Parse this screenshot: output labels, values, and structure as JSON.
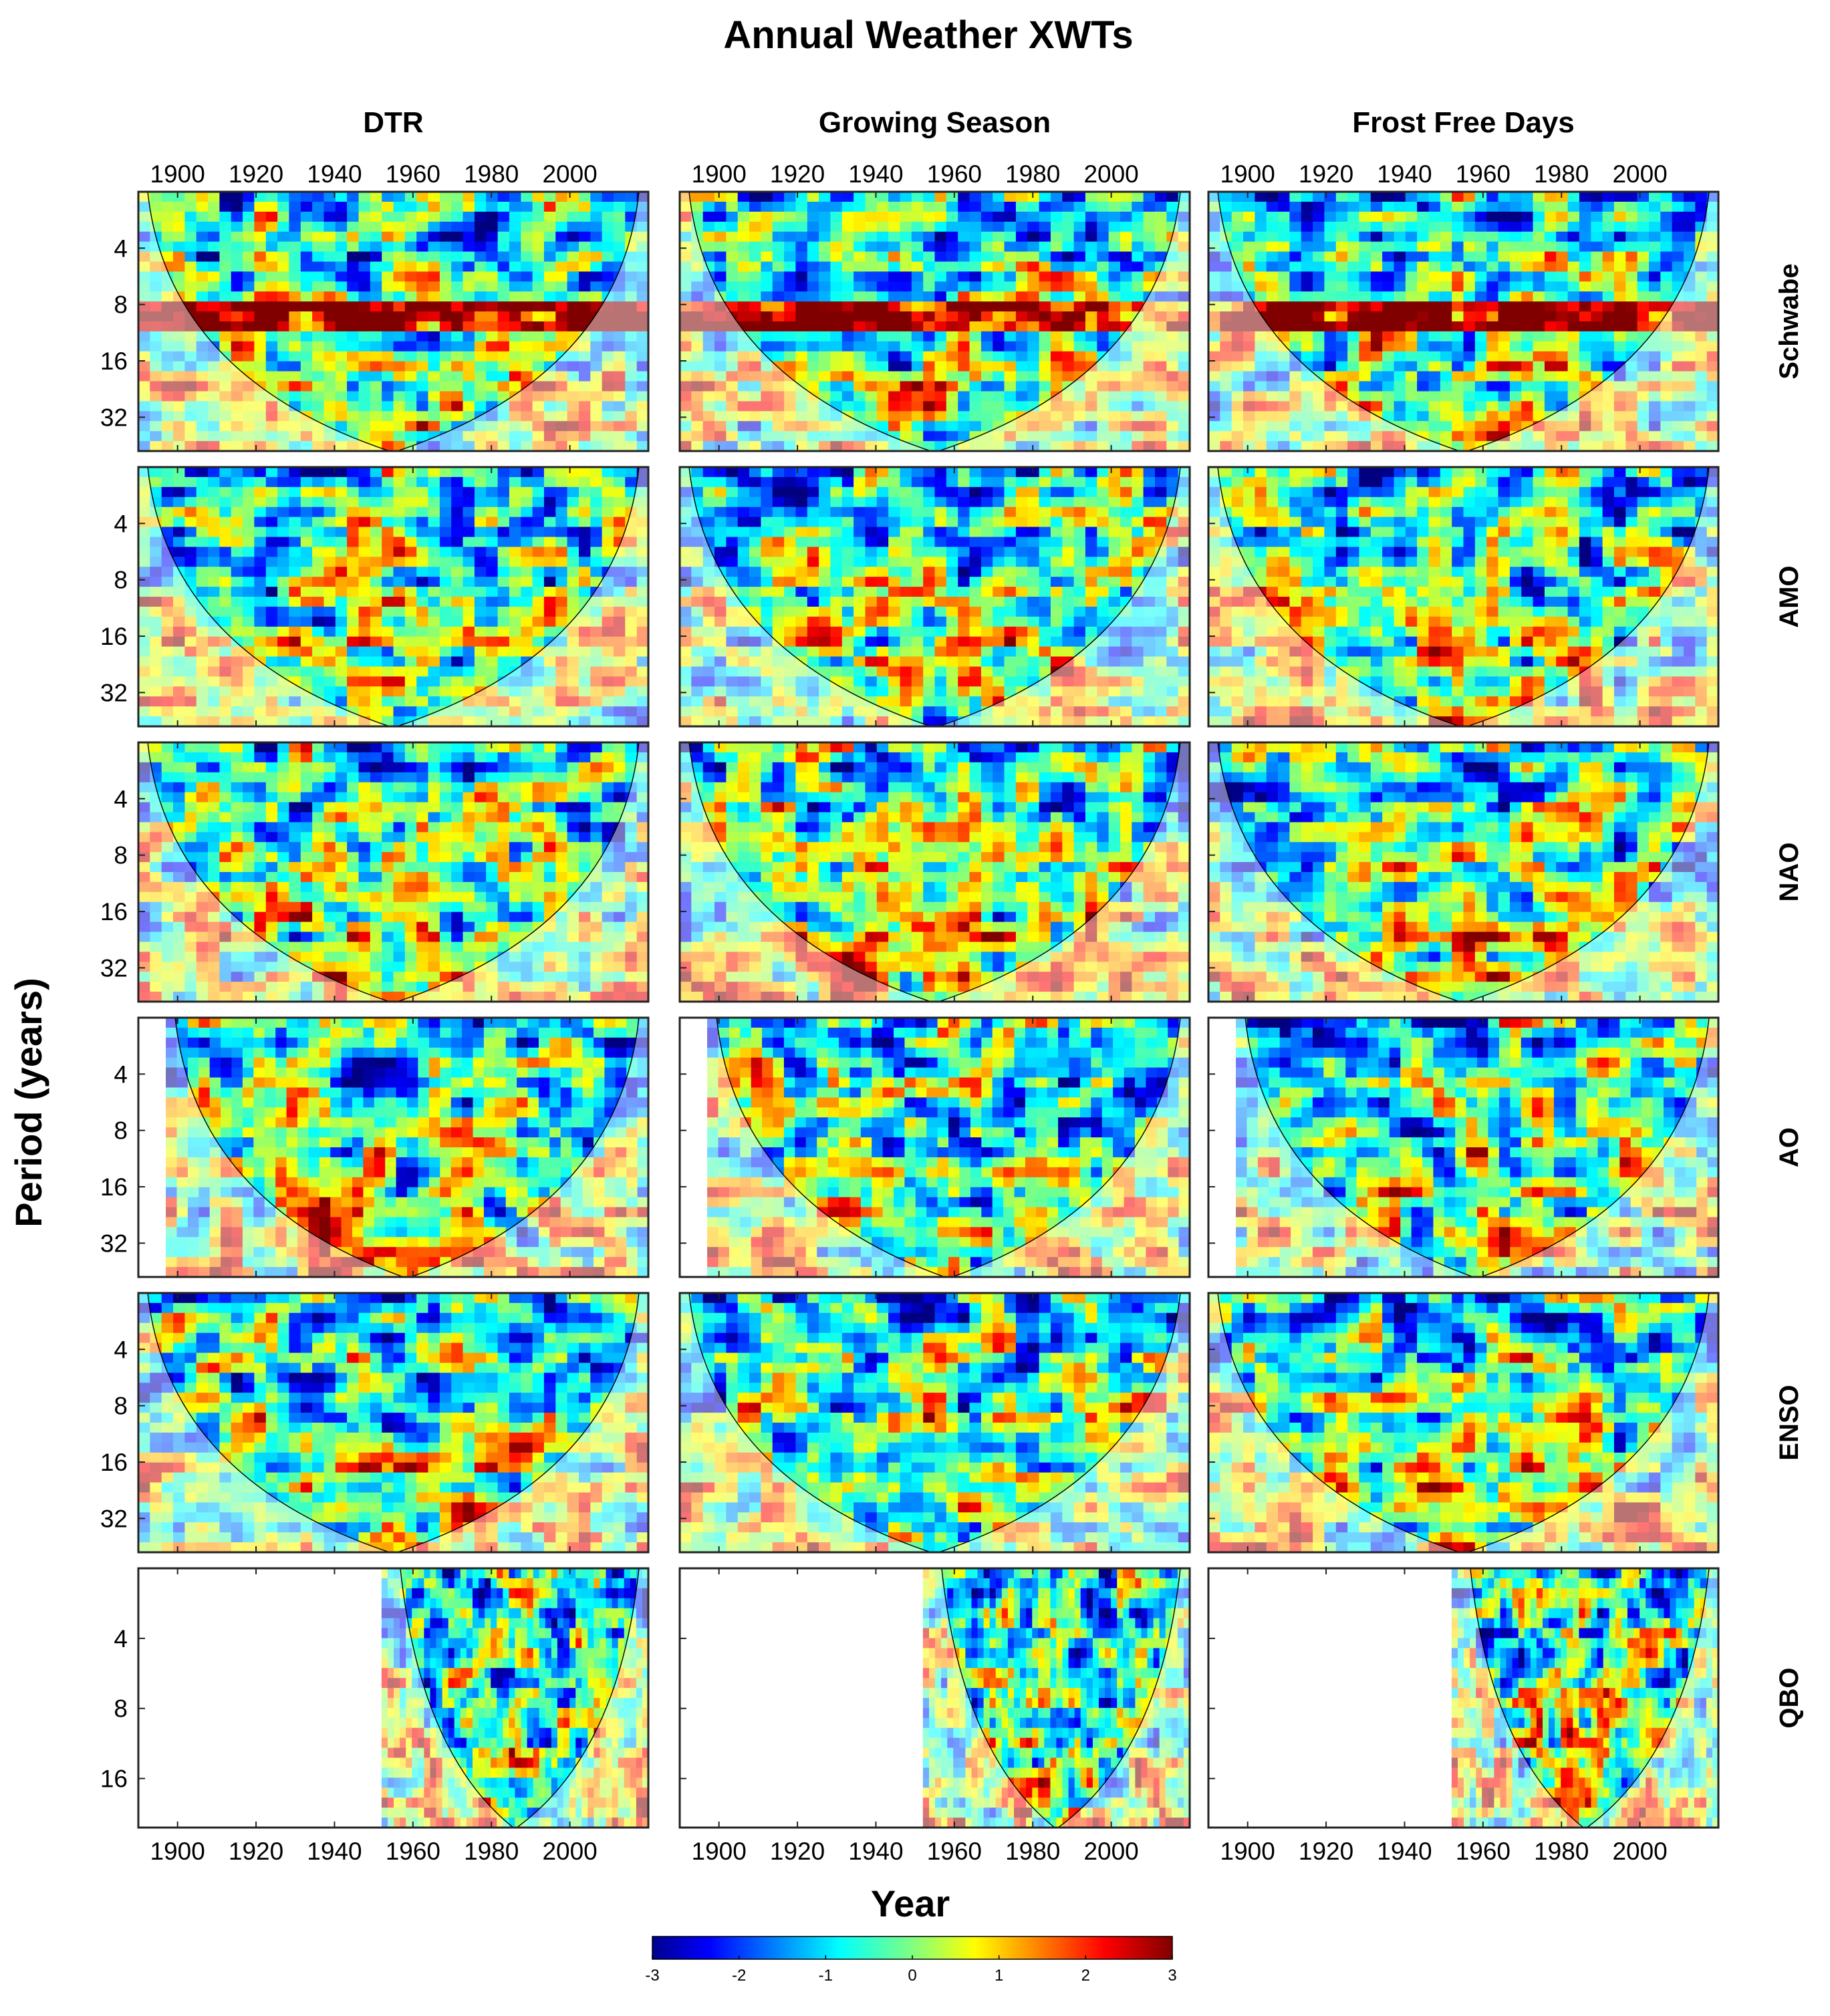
{
  "chart_data": {
    "type": "heatmap",
    "title": "Annual Weather XWTs",
    "xlabel": "Year",
    "ylabel": "Period (years)",
    "columns": [
      "DTR",
      "Growing Season",
      "Frost Free Days"
    ],
    "rows": [
      "Schwabe",
      "AMO",
      "NAO",
      "AO",
      "ENSO",
      "QBO"
    ],
    "x_range": [
      1890,
      2020
    ],
    "x_ticks": [
      1900,
      1920,
      1940,
      1960,
      1980,
      2000
    ],
    "y_ticks_default": [
      4,
      8,
      16,
      32
    ],
    "y_ticks_qbo": [
      4,
      8,
      16
    ],
    "y_range_log2_default": [
      1,
      5.6
    ],
    "y_range_log2_qbo": [
      1,
      4.7
    ],
    "row_data_start_years": [
      1890,
      1890,
      1890,
      1897,
      1890,
      1952
    ],
    "colorbar": {
      "min": -3,
      "max": 3,
      "ticks": [
        -3,
        -2,
        -1,
        0,
        1,
        2,
        3
      ]
    }
  }
}
